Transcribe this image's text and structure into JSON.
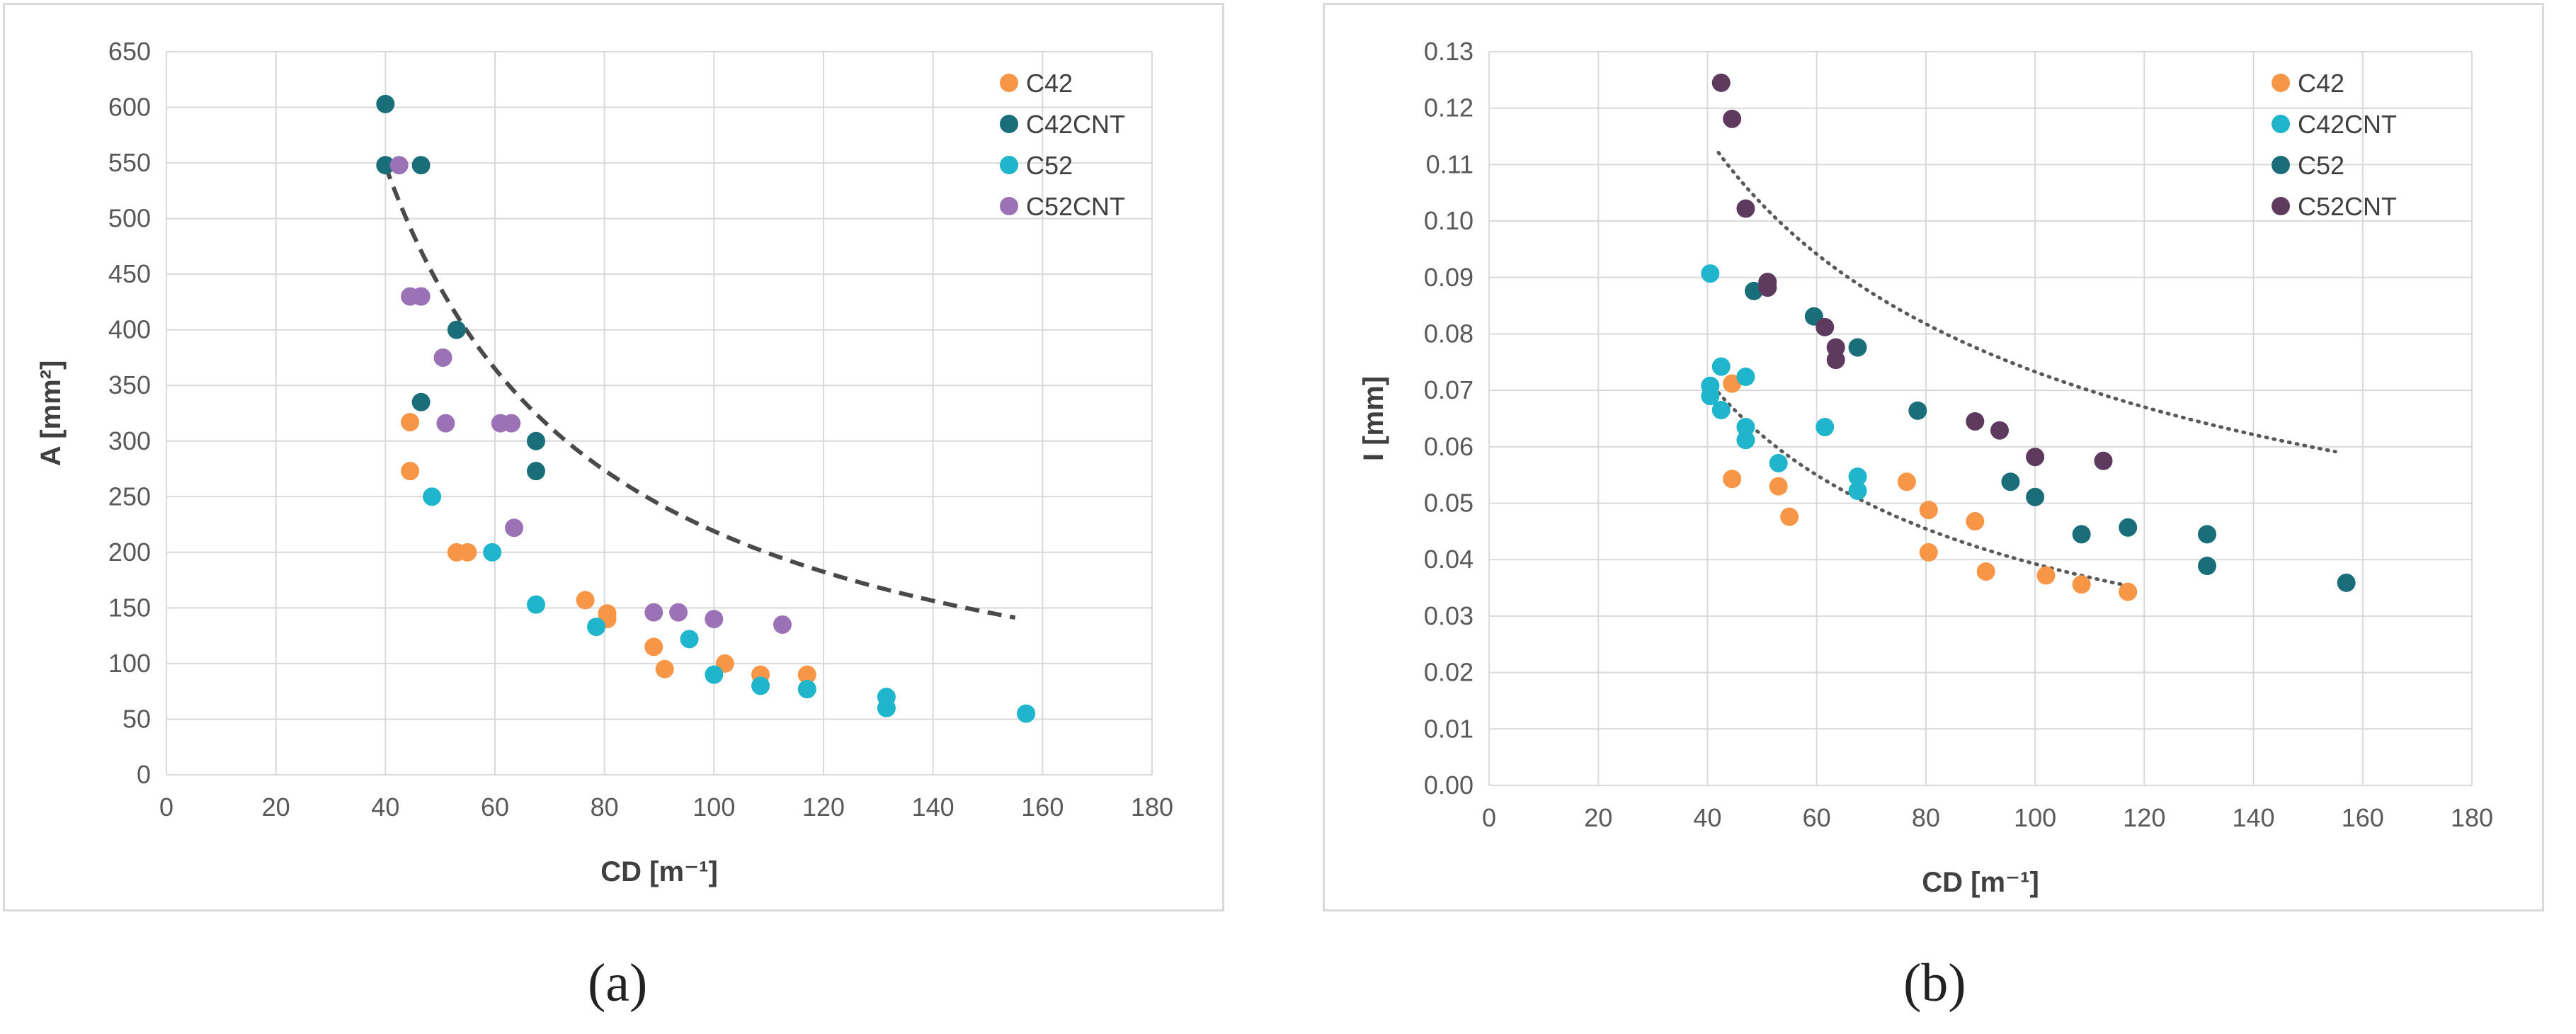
{
  "captions": {
    "a": "(a)",
    "b": "(b)"
  },
  "chart_data": [
    {
      "type": "scatter",
      "title": "",
      "xlabel": "CD [m⁻¹]",
      "ylabel": "A [mm²]",
      "xlim": [
        0,
        180
      ],
      "ylim": [
        0,
        650
      ],
      "xticks": [
        0,
        20,
        40,
        60,
        80,
        100,
        120,
        140,
        160,
        180
      ],
      "yticks": [
        0,
        50,
        100,
        150,
        200,
        250,
        300,
        350,
        400,
        450,
        500,
        550,
        600,
        650
      ],
      "ytick_decimals": 0,
      "grid": true,
      "legend_position": "top-right",
      "series": [
        {
          "name": "C42",
          "color": "#F79646",
          "points": [
            [
              44.5,
              317
            ],
            [
              44.5,
              273
            ],
            [
              53,
              200
            ],
            [
              55,
              200
            ],
            [
              76.5,
              157
            ],
            [
              80.5,
              145
            ],
            [
              80.5,
              140
            ],
            [
              89,
              115
            ],
            [
              91,
              95
            ],
            [
              102,
              100
            ],
            [
              108.5,
              90
            ],
            [
              117,
              90
            ],
            [
              117,
              77
            ]
          ]
        },
        {
          "name": "C42CNT",
          "color": "#1A6E7A",
          "points": [
            [
              40,
              603
            ],
            [
              40,
              548
            ],
            [
              46.5,
              548
            ],
            [
              46.5,
              335
            ],
            [
              53,
              400
            ],
            [
              67.5,
              300
            ],
            [
              67.5,
              273
            ]
          ]
        },
        {
          "name": "C52",
          "color": "#1FB5CC",
          "points": [
            [
              48.5,
              250
            ],
            [
              59.5,
              200
            ],
            [
              67.5,
              153
            ],
            [
              78.5,
              133
            ],
            [
              95.5,
              122
            ],
            [
              100,
              90
            ],
            [
              108.5,
              80
            ],
            [
              117,
              77
            ],
            [
              131.5,
              70
            ],
            [
              131.5,
              60
            ],
            [
              157,
              55
            ]
          ]
        },
        {
          "name": "C52CNT",
          "color": "#9B72B6",
          "points": [
            [
              42.5,
              548
            ],
            [
              44.5,
              430
            ],
            [
              46.5,
              430
            ],
            [
              46.5,
              430
            ],
            [
              50.5,
              375
            ],
            [
              51,
              316
            ],
            [
              61,
              316
            ],
            [
              63,
              316
            ],
            [
              63.5,
              222
            ],
            [
              89,
              146
            ],
            [
              93.5,
              146
            ],
            [
              100,
              140
            ],
            [
              112.5,
              135
            ]
          ]
        }
      ],
      "trendlines": [
        {
          "style": "dashed",
          "color": "#4A4A4A",
          "x_from": 40,
          "x_to": 155,
          "k": 21900,
          "p": 1.0
        }
      ]
    },
    {
      "type": "scatter",
      "title": "",
      "xlabel": "CD [m⁻¹]",
      "ylabel": "I [mm]",
      "xlim": [
        0,
        180
      ],
      "ylim": [
        0,
        0.13
      ],
      "xticks": [
        0,
        20,
        40,
        60,
        80,
        100,
        120,
        140,
        160,
        180
      ],
      "yticks": [
        0,
        0.01,
        0.02,
        0.03,
        0.04,
        0.05,
        0.06,
        0.07,
        0.08,
        0.09,
        0.1,
        0.11,
        0.12,
        0.13
      ],
      "ytick_decimals": 2,
      "grid": true,
      "legend_position": "top-right",
      "series": [
        {
          "name": "C42",
          "color": "#F79646",
          "points": [
            [
              44.5,
              0.0712
            ],
            [
              44.5,
              0.0543
            ],
            [
              53,
              0.053
            ],
            [
              55,
              0.0476
            ],
            [
              76.5,
              0.0538
            ],
            [
              80.5,
              0.0488
            ],
            [
              80.5,
              0.0413
            ],
            [
              89,
              0.0468
            ],
            [
              91,
              0.0379
            ],
            [
              102,
              0.0372
            ],
            [
              108.5,
              0.0356
            ],
            [
              117,
              0.0343
            ]
          ]
        },
        {
          "name": "C42CNT",
          "color": "#1FB5CC",
          "points": [
            [
              40.5,
              0.0907
            ],
            [
              40.5,
              0.0708
            ],
            [
              40.5,
              0.069
            ],
            [
              42.5,
              0.0742
            ],
            [
              42.5,
              0.0665
            ],
            [
              47,
              0.0724
            ],
            [
              47,
              0.0635
            ],
            [
              47,
              0.0612
            ],
            [
              53,
              0.0571
            ],
            [
              61.5,
              0.0635
            ],
            [
              67.5,
              0.0547
            ],
            [
              67.5,
              0.0522
            ]
          ]
        },
        {
          "name": "C52",
          "color": "#1A6E7A",
          "points": [
            [
              48.5,
              0.0876
            ],
            [
              59.5,
              0.0831
            ],
            [
              67.5,
              0.0776
            ],
            [
              78.5,
              0.0664
            ],
            [
              95.5,
              0.0538
            ],
            [
              100,
              0.0511
            ],
            [
              108.5,
              0.0445
            ],
            [
              117,
              0.0457
            ],
            [
              131.5,
              0.0445
            ],
            [
              131.5,
              0.0389
            ],
            [
              157,
              0.0359
            ]
          ]
        },
        {
          "name": "C52CNT",
          "color": "#5E3A5E",
          "points": [
            [
              42.5,
              0.1245
            ],
            [
              44.5,
              0.1181
            ],
            [
              47,
              0.1022
            ],
            [
              51,
              0.0892
            ],
            [
              51,
              0.0882
            ],
            [
              61.5,
              0.0812
            ],
            [
              63.5,
              0.0776
            ],
            [
              63.5,
              0.0754
            ],
            [
              89,
              0.0645
            ],
            [
              93.5,
              0.0629
            ],
            [
              100,
              0.0582
            ],
            [
              112.5,
              0.0575
            ]
          ]
        }
      ],
      "trendlines": [
        {
          "style": "dotted",
          "color": "#595959",
          "x_from": 42,
          "x_to": 155,
          "k": 0.7,
          "p": 0.49
        },
        {
          "style": "dotted",
          "color": "#595959",
          "x_from": 42,
          "x_to": 117,
          "k": 0.82,
          "p": 0.66
        }
      ]
    }
  ]
}
